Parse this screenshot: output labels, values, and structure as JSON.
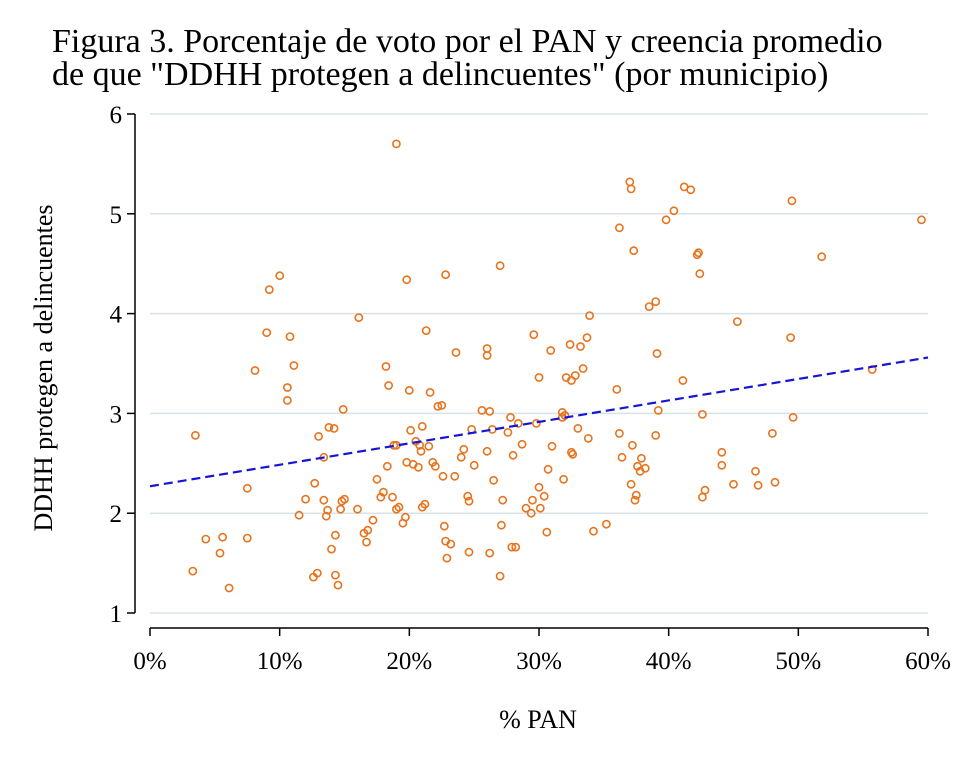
{
  "title_lines": [
    "Figura 3. Porcentaje de voto por el PAN y creencia promedio",
    "de que \"DDHH protegen a delincuentes\" (por municipio)"
  ],
  "colors": {
    "points": "#e8731c",
    "fit_line": "#1515d6",
    "grid": "#d7e3e8",
    "axis": "#000000"
  },
  "chart_data": {
    "type": "scatter",
    "xlabel": "% PAN",
    "ylabel": "DDHH protegen a delincuentes",
    "xlim": [
      0,
      0.6
    ],
    "ylim": [
      1,
      6
    ],
    "x_ticks": [
      0,
      0.1,
      0.2,
      0.3,
      0.4,
      0.5,
      0.6
    ],
    "x_tick_labels": [
      "0%",
      "10%",
      "20%",
      "30%",
      "40%",
      "50%",
      "60%"
    ],
    "y_ticks": [
      1,
      2,
      3,
      4,
      5,
      6
    ],
    "y_tick_labels": [
      "1",
      "2",
      "3",
      "4",
      "5",
      "6"
    ],
    "grid": "horizontal",
    "legend": "none",
    "fit_line": {
      "style": "dashed",
      "x": [
        0,
        0.6
      ],
      "y": [
        2.27,
        3.56
      ]
    },
    "points": [
      [
        0.033,
        1.42
      ],
      [
        0.035,
        2.78
      ],
      [
        0.043,
        1.74
      ],
      [
        0.054,
        1.6
      ],
      [
        0.056,
        1.76
      ],
      [
        0.061,
        1.25
      ],
      [
        0.075,
        2.25
      ],
      [
        0.075,
        1.75
      ],
      [
        0.081,
        3.43
      ],
      [
        0.09,
        3.81
      ],
      [
        0.092,
        4.24
      ],
      [
        0.1,
        4.38
      ],
      [
        0.106,
        3.26
      ],
      [
        0.106,
        3.13
      ],
      [
        0.108,
        3.77
      ],
      [
        0.111,
        3.48
      ],
      [
        0.115,
        1.98
      ],
      [
        0.12,
        2.14
      ],
      [
        0.126,
        1.36
      ],
      [
        0.127,
        2.3
      ],
      [
        0.129,
        1.4
      ],
      [
        0.13,
        2.77
      ],
      [
        0.134,
        2.56
      ],
      [
        0.134,
        2.13
      ],
      [
        0.136,
        1.97
      ],
      [
        0.137,
        2.03
      ],
      [
        0.138,
        2.86
      ],
      [
        0.14,
        1.64
      ],
      [
        0.142,
        2.85
      ],
      [
        0.143,
        1.78
      ],
      [
        0.143,
        1.38
      ],
      [
        0.145,
        1.28
      ],
      [
        0.147,
        2.04
      ],
      [
        0.148,
        2.12
      ],
      [
        0.149,
        3.04
      ],
      [
        0.15,
        2.14
      ],
      [
        0.16,
        2.04
      ],
      [
        0.161,
        3.96
      ],
      [
        0.165,
        1.8
      ],
      [
        0.167,
        1.71
      ],
      [
        0.168,
        1.83
      ],
      [
        0.172,
        1.93
      ],
      [
        0.175,
        2.34
      ],
      [
        0.178,
        2.16
      ],
      [
        0.18,
        2.21
      ],
      [
        0.182,
        3.47
      ],
      [
        0.183,
        2.47
      ],
      [
        0.184,
        3.28
      ],
      [
        0.187,
        2.16
      ],
      [
        0.188,
        2.68
      ],
      [
        0.19,
        5.7
      ],
      [
        0.19,
        2.04
      ],
      [
        0.19,
        2.68
      ],
      [
        0.192,
        2.06
      ],
      [
        0.195,
        1.9
      ],
      [
        0.197,
        1.96
      ],
      [
        0.198,
        2.51
      ],
      [
        0.198,
        4.34
      ],
      [
        0.2,
        3.23
      ],
      [
        0.201,
        2.83
      ],
      [
        0.203,
        2.49
      ],
      [
        0.205,
        2.72
      ],
      [
        0.207,
        2.46
      ],
      [
        0.208,
        2.68
      ],
      [
        0.209,
        2.62
      ],
      [
        0.21,
        2.87
      ],
      [
        0.21,
        2.06
      ],
      [
        0.212,
        2.09
      ],
      [
        0.213,
        3.83
      ],
      [
        0.215,
        2.67
      ],
      [
        0.216,
        3.21
      ],
      [
        0.218,
        2.51
      ],
      [
        0.22,
        2.47
      ],
      [
        0.222,
        3.07
      ],
      [
        0.225,
        3.08
      ],
      [
        0.226,
        2.37
      ],
      [
        0.227,
        1.87
      ],
      [
        0.228,
        4.39
      ],
      [
        0.228,
        1.72
      ],
      [
        0.229,
        1.55
      ],
      [
        0.232,
        1.69
      ],
      [
        0.235,
        2.37
      ],
      [
        0.236,
        3.61
      ],
      [
        0.24,
        2.56
      ],
      [
        0.242,
        2.64
      ],
      [
        0.245,
        2.17
      ],
      [
        0.246,
        2.12
      ],
      [
        0.246,
        1.61
      ],
      [
        0.248,
        2.84
      ],
      [
        0.25,
        2.48
      ],
      [
        0.256,
        3.03
      ],
      [
        0.26,
        2.62
      ],
      [
        0.26,
        3.65
      ],
      [
        0.26,
        3.58
      ],
      [
        0.262,
        1.6
      ],
      [
        0.262,
        3.02
      ],
      [
        0.264,
        2.84
      ],
      [
        0.265,
        2.33
      ],
      [
        0.27,
        4.48
      ],
      [
        0.27,
        1.37
      ],
      [
        0.271,
        1.88
      ],
      [
        0.272,
        2.13
      ],
      [
        0.276,
        2.81
      ],
      [
        0.278,
        2.96
      ],
      [
        0.279,
        1.66
      ],
      [
        0.28,
        2.58
      ],
      [
        0.282,
        1.66
      ],
      [
        0.284,
        2.9
      ],
      [
        0.287,
        2.69
      ],
      [
        0.29,
        2.05
      ],
      [
        0.294,
        2.0
      ],
      [
        0.295,
        2.13
      ],
      [
        0.296,
        3.79
      ],
      [
        0.298,
        2.9
      ],
      [
        0.3,
        3.36
      ],
      [
        0.3,
        2.26
      ],
      [
        0.301,
        2.05
      ],
      [
        0.304,
        2.17
      ],
      [
        0.306,
        1.81
      ],
      [
        0.307,
        2.44
      ],
      [
        0.309,
        3.63
      ],
      [
        0.31,
        2.67
      ],
      [
        0.318,
        2.96
      ],
      [
        0.318,
        3.01
      ],
      [
        0.319,
        2.34
      ],
      [
        0.32,
        2.98
      ],
      [
        0.321,
        3.36
      ],
      [
        0.324,
        3.69
      ],
      [
        0.325,
        2.61
      ],
      [
        0.325,
        3.33
      ],
      [
        0.326,
        2.59
      ],
      [
        0.328,
        3.38
      ],
      [
        0.33,
        2.85
      ],
      [
        0.332,
        3.67
      ],
      [
        0.334,
        3.45
      ],
      [
        0.337,
        3.76
      ],
      [
        0.338,
        2.75
      ],
      [
        0.339,
        3.98
      ],
      [
        0.342,
        1.82
      ],
      [
        0.352,
        1.89
      ],
      [
        0.36,
        3.24
      ],
      [
        0.362,
        4.86
      ],
      [
        0.362,
        2.8
      ],
      [
        0.364,
        2.56
      ],
      [
        0.37,
        5.32
      ],
      [
        0.371,
        5.25
      ],
      [
        0.371,
        2.29
      ],
      [
        0.372,
        2.68
      ],
      [
        0.373,
        4.63
      ],
      [
        0.374,
        2.13
      ],
      [
        0.375,
        2.18
      ],
      [
        0.376,
        2.47
      ],
      [
        0.378,
        2.42
      ],
      [
        0.379,
        2.55
      ],
      [
        0.382,
        2.45
      ],
      [
        0.385,
        4.07
      ],
      [
        0.39,
        4.12
      ],
      [
        0.391,
        3.6
      ],
      [
        0.392,
        3.03
      ],
      [
        0.39,
        2.78
      ],
      [
        0.398,
        4.94
      ],
      [
        0.404,
        5.03
      ],
      [
        0.411,
        3.33
      ],
      [
        0.412,
        5.27
      ],
      [
        0.417,
        5.24
      ],
      [
        0.422,
        4.59
      ],
      [
        0.423,
        4.61
      ],
      [
        0.424,
        4.4
      ],
      [
        0.426,
        2.99
      ],
      [
        0.426,
        2.16
      ],
      [
        0.428,
        2.23
      ],
      [
        0.453,
        3.92
      ],
      [
        0.441,
        2.61
      ],
      [
        0.441,
        2.48
      ],
      [
        0.45,
        2.29
      ],
      [
        0.467,
        2.42
      ],
      [
        0.469,
        2.28
      ],
      [
        0.48,
        2.8
      ],
      [
        0.482,
        2.31
      ],
      [
        0.494,
        3.76
      ],
      [
        0.495,
        5.13
      ],
      [
        0.496,
        2.96
      ],
      [
        0.518,
        4.57
      ],
      [
        0.557,
        3.44
      ],
      [
        0.595,
        4.94
      ]
    ]
  }
}
